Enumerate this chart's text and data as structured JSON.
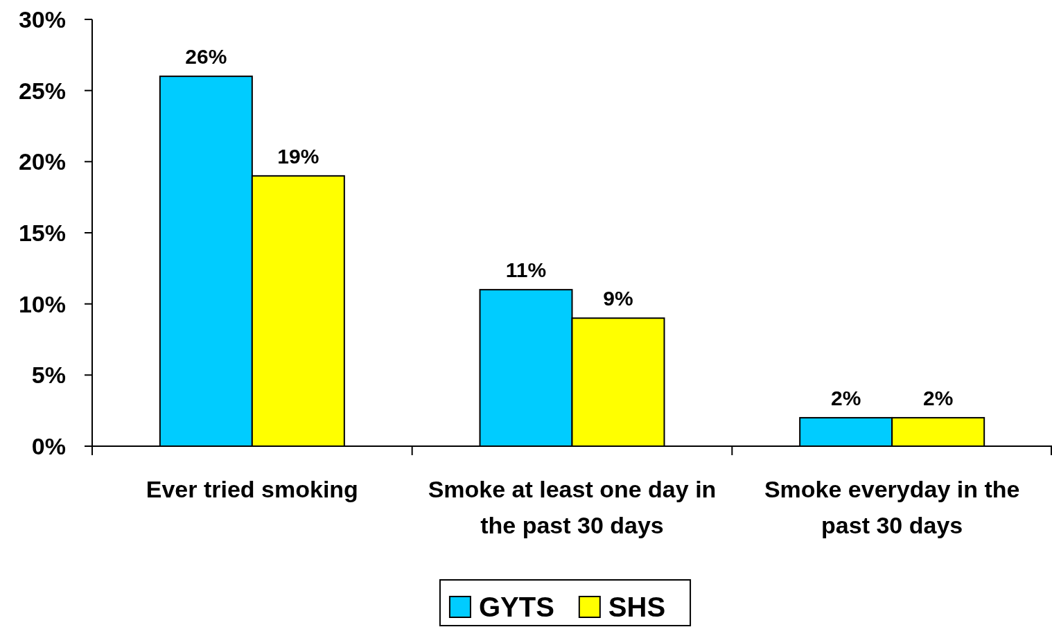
{
  "chart_data": {
    "type": "bar",
    "categories": [
      "Ever tried smoking",
      "Smoke at least one day in the past 30 days",
      "Smoke everyday in the past 30 days"
    ],
    "series": [
      {
        "name": "GYTS",
        "color": "#00ccff",
        "values": [
          26,
          11,
          2
        ],
        "value_labels": [
          "26%",
          "11%",
          "2%"
        ]
      },
      {
        "name": "SHS",
        "color": "#ffff00",
        "values": [
          19,
          9,
          2
        ],
        "value_labels": [
          "19%",
          "9%",
          "2%"
        ]
      }
    ],
    "ylim": [
      0,
      30
    ],
    "yticks": [
      {
        "value": 0,
        "label": "0%"
      },
      {
        "value": 5,
        "label": "5%"
      },
      {
        "value": 10,
        "label": "10%"
      },
      {
        "value": 15,
        "label": "15%"
      },
      {
        "value": 20,
        "label": "20%"
      },
      {
        "value": 25,
        "label": "25%"
      },
      {
        "value": 30,
        "label": "30%"
      }
    ],
    "grid": false,
    "legend": "bottom"
  }
}
